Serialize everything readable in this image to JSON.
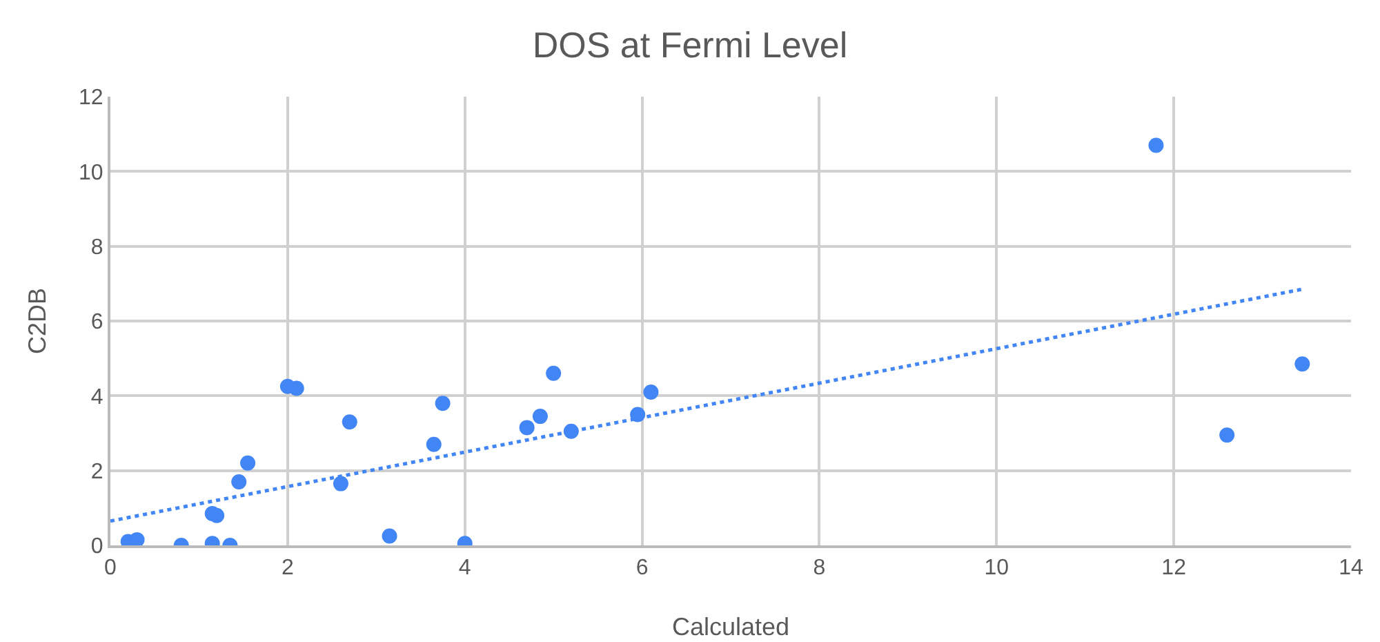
{
  "chart_data": {
    "type": "scatter",
    "title": "DOS at Fermi Level",
    "xlabel": "Calculated",
    "ylabel": "C2DB",
    "xlim": [
      0,
      14
    ],
    "xticks": [
      0,
      2,
      4,
      6,
      8,
      10,
      12,
      14
    ],
    "ylim": [
      0,
      12
    ],
    "yticks": [
      0,
      2,
      4,
      6,
      8,
      10,
      12
    ],
    "grid": true,
    "marker": "circle",
    "series": [
      {
        "color": "#4285f4",
        "x": [
          0.2,
          0.3,
          0.8,
          1.15,
          1.15,
          1.2,
          1.35,
          1.45,
          1.55,
          2.0,
          2.1,
          2.6,
          2.7,
          3.15,
          3.65,
          3.75,
          4.0,
          4.7,
          4.85,
          5.0,
          5.2,
          5.95,
          6.1,
          11.8,
          12.6,
          13.45
        ],
        "values": [
          0.1,
          0.15,
          0,
          0.85,
          0.05,
          0.8,
          0,
          1.7,
          2.2,
          4.25,
          4.2,
          1.65,
          3.3,
          0.25,
          2.7,
          3.8,
          0.05,
          3.15,
          3.45,
          4.6,
          3.05,
          3.5,
          4.1,
          10.7,
          2.95,
          4.85
        ]
      },
      {
        "type": "line",
        "line_style": "dotted",
        "marker": "none",
        "color": "#4285f4",
        "x": [
          0,
          13.45
        ],
        "values": [
          0.65,
          6.85
        ]
      }
    ]
  }
}
